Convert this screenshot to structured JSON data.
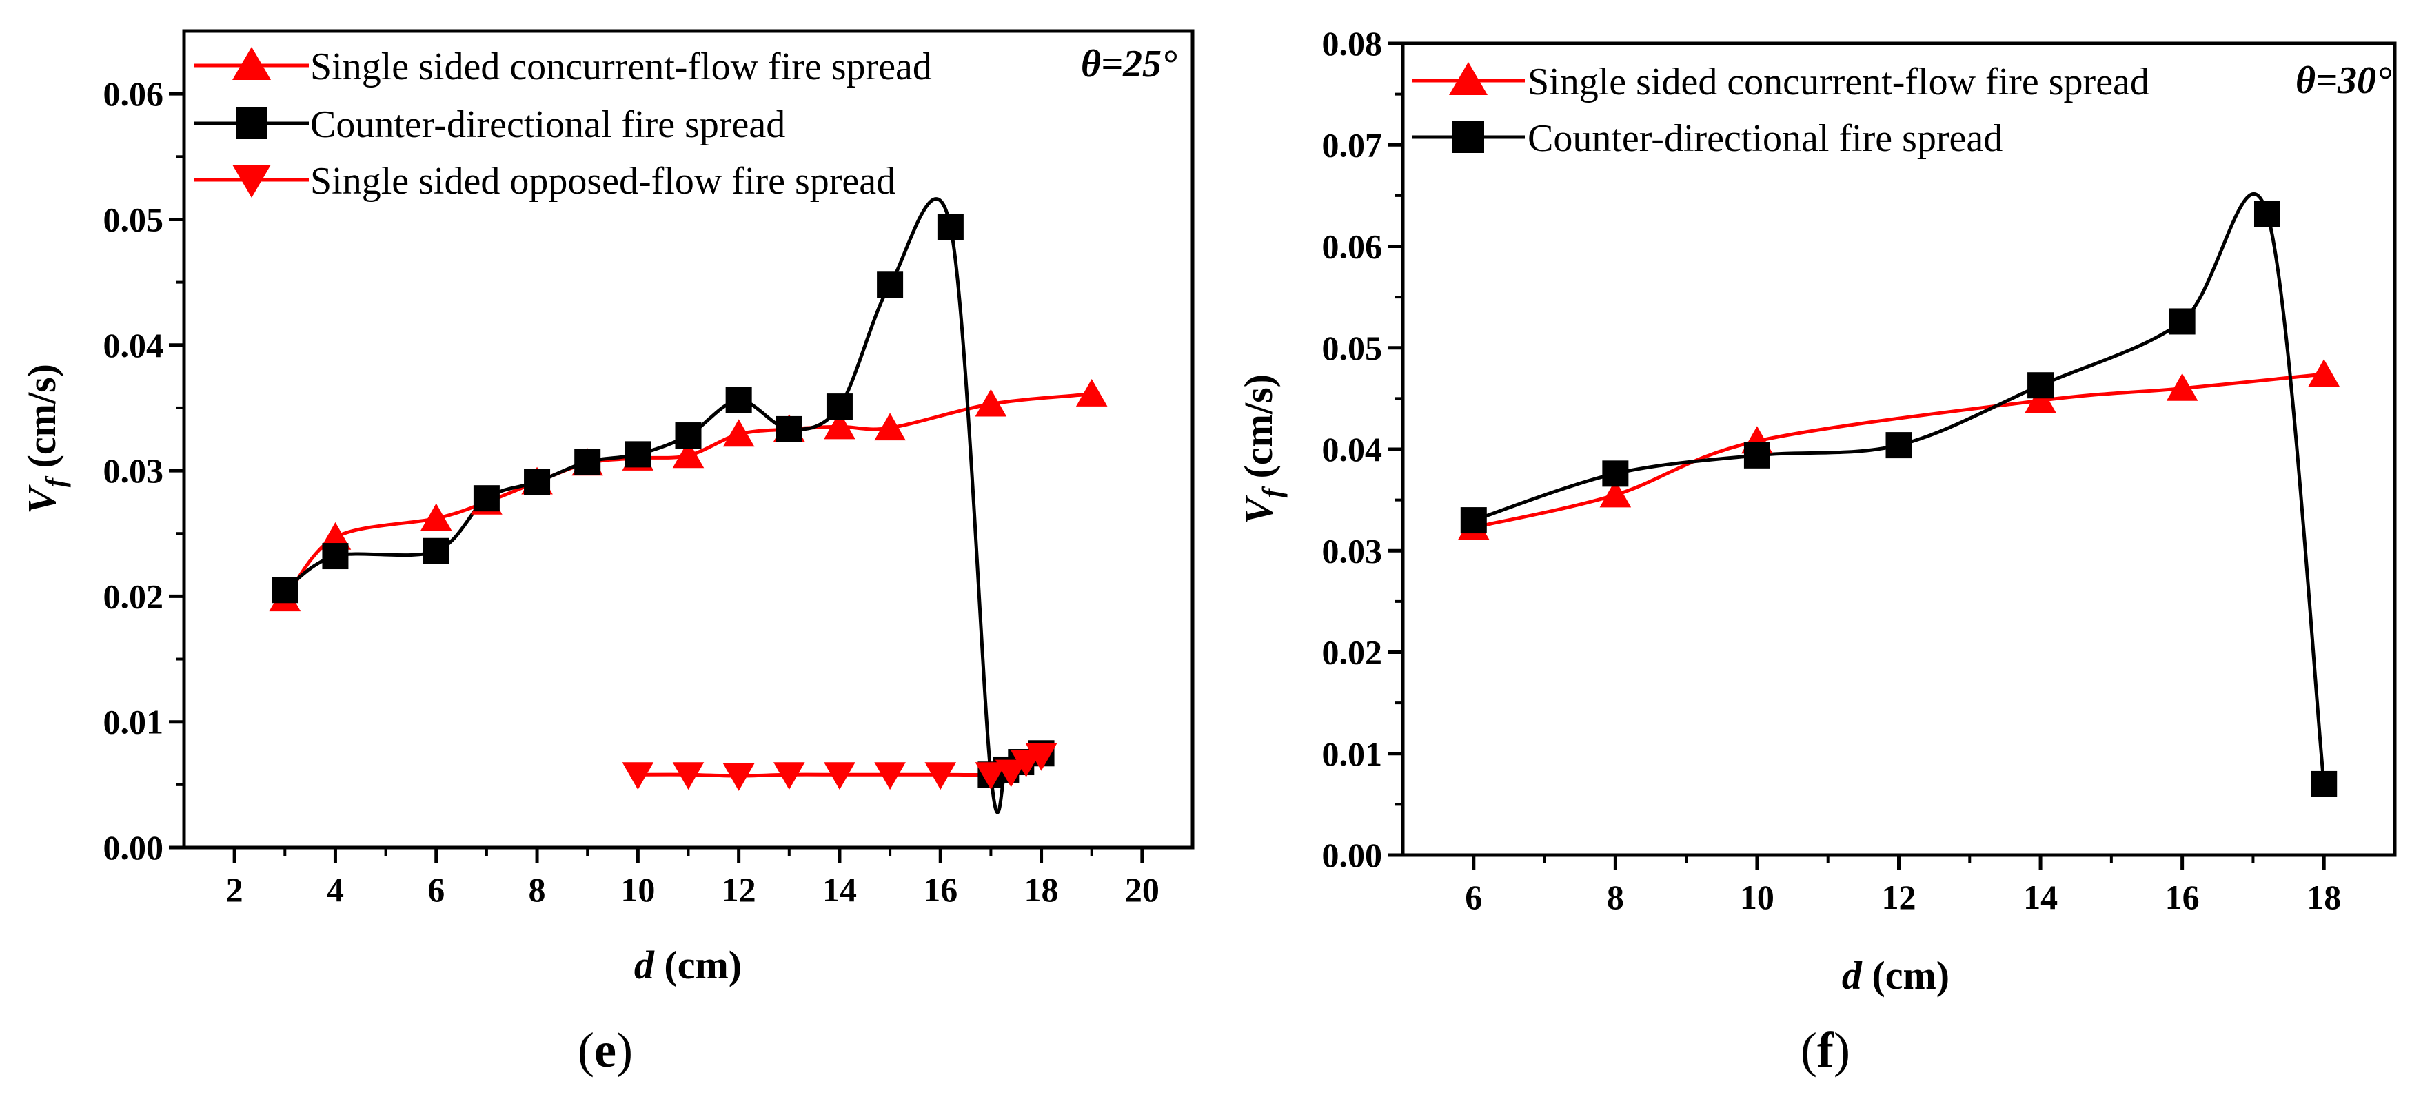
{
  "chart_data": [
    {
      "type": "line",
      "panel_label_prefix": "(",
      "panel_label_letter": "e",
      "panel_label_suffix": ")",
      "theta_symbol": "θ",
      "theta_value": "=25°",
      "ylabel_var": "V",
      "ylabel_sub": "f",
      "ylabel_unit": " (cm/s)",
      "xlabel_var": "d",
      "xlabel_unit": " (cm)",
      "xlim": [
        1,
        21
      ],
      "ylim": [
        0,
        0.065
      ],
      "xticks": [
        2,
        4,
        6,
        8,
        10,
        12,
        14,
        16,
        18,
        20
      ],
      "xtick_labels": [
        "2",
        "4",
        "6",
        "8",
        "10",
        "12",
        "14",
        "16",
        "18",
        "20"
      ],
      "yticks": [
        0,
        0.01,
        0.02,
        0.03,
        0.04,
        0.05,
        0.06
      ],
      "ytick_labels": [
        "0.00",
        "0.01",
        "0.02",
        "0.03",
        "0.04",
        "0.05",
        "0.06"
      ],
      "legend_position": "top-left",
      "series": [
        {
          "name": "Single sided concurrent-flow fire spread",
          "marker": "triangle-up",
          "color": "#ff0000",
          "line_color": "#ff0000",
          "x": [
            3,
            4,
            6,
            7,
            8,
            9,
            10,
            11,
            12,
            13,
            14,
            15,
            17,
            19
          ],
          "y": [
            0.0198,
            0.0247,
            0.0262,
            0.0275,
            0.0291,
            0.0306,
            0.031,
            0.0312,
            0.0329,
            0.0333,
            0.0335,
            0.0334,
            0.0353,
            0.0361
          ]
        },
        {
          "name": "Counter-directional fire spread",
          "marker": "square",
          "color": "#000000",
          "line_color": "#000000",
          "x": [
            3,
            4,
            6,
            7,
            8,
            9,
            10,
            11,
            12,
            13,
            14,
            15,
            16.2,
            17,
            17.3,
            17.6,
            18
          ],
          "y": [
            0.0205,
            0.0232,
            0.0236,
            0.0278,
            0.0291,
            0.0307,
            0.0313,
            0.0328,
            0.0356,
            0.0333,
            0.0351,
            0.0448,
            0.0494,
            0.0058,
            0.0062,
            0.0068,
            0.0075
          ]
        },
        {
          "name": "Single sided opposed-flow fire spread",
          "marker": "triangle-down",
          "color": "#ff0000",
          "line_color": "#ff0000",
          "x": [
            10,
            11,
            12,
            13,
            14,
            15,
            16,
            17,
            17.4,
            17.7,
            18
          ],
          "y": [
            0.0058,
            0.0058,
            0.0057,
            0.0058,
            0.0058,
            0.0058,
            0.0058,
            0.0058,
            0.006,
            0.0068,
            0.0073
          ]
        }
      ]
    },
    {
      "type": "line",
      "panel_label_prefix": "(",
      "panel_label_letter": "f",
      "panel_label_suffix": ")",
      "theta_symbol": "θ",
      "theta_value": "=30°",
      "ylabel_var": "V",
      "ylabel_sub": "f",
      "ylabel_unit": " (cm/s)",
      "xlabel_var": "d",
      "xlabel_unit": " (cm)",
      "xlim": [
        5,
        19
      ],
      "ylim": [
        0,
        0.08
      ],
      "xticks": [
        6,
        8,
        10,
        12,
        14,
        16,
        18
      ],
      "xtick_labels": [
        "6",
        "8",
        "10",
        "12",
        "14",
        "16",
        "18"
      ],
      "yticks": [
        0,
        0.01,
        0.02,
        0.03,
        0.04,
        0.05,
        0.06,
        0.07,
        0.08
      ],
      "ytick_labels": [
        "0.00",
        "0.01",
        "0.02",
        "0.03",
        "0.04",
        "0.05",
        "0.06",
        "0.07",
        "0.08"
      ],
      "legend_position": "top-left",
      "series": [
        {
          "name": "Single sided concurrent-flow fire spread",
          "marker": "triangle-up",
          "color": "#ff0000",
          "line_color": "#ff0000",
          "x": [
            6,
            8,
            10,
            14,
            16,
            18
          ],
          "y": [
            0.0323,
            0.0355,
            0.0408,
            0.0448,
            0.046,
            0.0474
          ]
        },
        {
          "name": "Counter-directional fire spread",
          "marker": "square",
          "color": "#000000",
          "line_color": "#000000",
          "x": [
            6,
            8,
            10,
            12,
            14,
            16,
            17.2,
            18
          ],
          "y": [
            0.033,
            0.0376,
            0.0394,
            0.0404,
            0.0463,
            0.0526,
            0.0632,
            0.007
          ]
        }
      ]
    }
  ]
}
